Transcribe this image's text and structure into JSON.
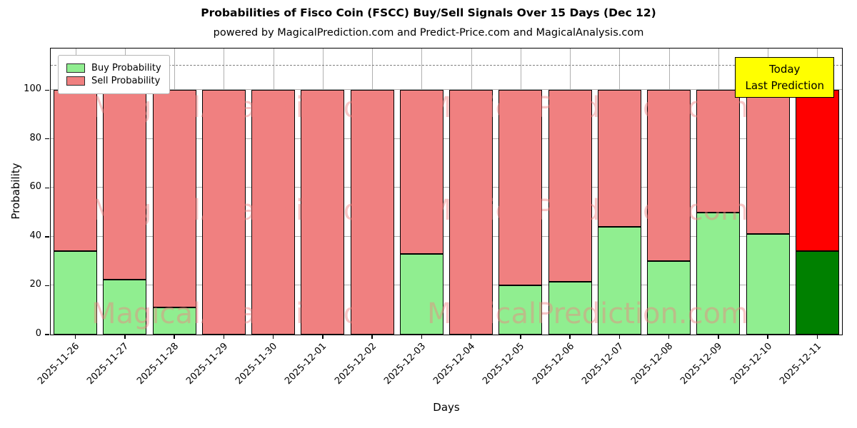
{
  "figure": {
    "title": "Probabilities of Fisco Coin (FSCC) Buy/Sell Signals Over 15 Days (Dec 12)",
    "subtitle": "powered by MagicalPrediction.com and Predict-Price.com and MagicalAnalysis.com",
    "xlabel": "Days",
    "ylabel": "Probability",
    "today_box": {
      "line1": "Today",
      "line2": "Last Prediction",
      "bg_color": "#ffff00"
    },
    "legend": [
      {
        "label": "Buy Probability",
        "color": "#90EE90"
      },
      {
        "label": "Sell Probability",
        "color": "#F08080"
      }
    ],
    "watermarks": {
      "left": "MagicalAnalysis.com",
      "right": "MagicalPrediction.com"
    }
  },
  "chart_data": {
    "type": "bar",
    "stacked": true,
    "title": "Probabilities of Fisco Coin (FSCC) Buy/Sell Signals Over 15 Days (Dec 12)",
    "xlabel": "Days",
    "ylabel": "Probability",
    "categories": [
      "2025-11-26",
      "2025-11-27",
      "2025-11-28",
      "2025-11-29",
      "2025-11-30",
      "2025-12-01",
      "2025-12-02",
      "2025-12-03",
      "2025-12-04",
      "2025-12-05",
      "2025-12-06",
      "2025-12-07",
      "2025-12-08",
      "2025-12-09",
      "2025-12-10",
      "2025-12-11"
    ],
    "series": [
      {
        "name": "Buy Probability",
        "color": "#90EE90",
        "values": [
          34,
          22.5,
          11,
          0,
          0,
          0,
          0,
          33,
          0,
          20,
          21.5,
          44,
          30,
          50,
          41,
          34
        ]
      },
      {
        "name": "Sell Probability",
        "color": "#F08080",
        "values": [
          66,
          77.5,
          89,
          100,
          100,
          100,
          100,
          67,
          100,
          80,
          78.5,
          56,
          70,
          50,
          59,
          66
        ]
      }
    ],
    "today_index": 15,
    "today_colors": {
      "buy": "#008000",
      "sell": "#ff0000"
    },
    "ylim": [
      0,
      117
    ],
    "yticks": [
      0,
      20,
      40,
      60,
      80,
      100
    ],
    "threshold_line_y": 110,
    "grid": true,
    "legend_position": "upper left",
    "bar_edge_color": "#000000"
  }
}
